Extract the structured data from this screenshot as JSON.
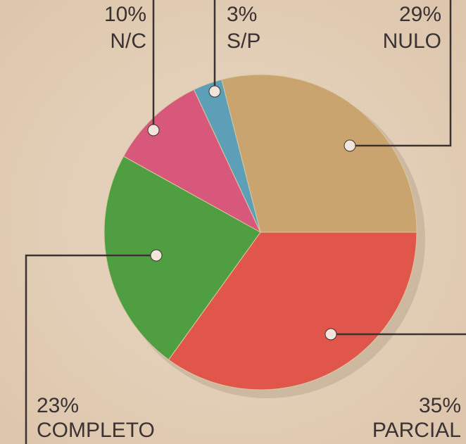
{
  "chart_data": {
    "type": "pie",
    "categories": [
      "NULO",
      "PARCIAL",
      "COMPLETO",
      "N/C",
      "S/P"
    ],
    "values": [
      29,
      35,
      23,
      10,
      3
    ],
    "value_labels": [
      "29%",
      "35%",
      "23%",
      "10%",
      "3%"
    ],
    "colors": [
      "#c9a46e",
      "#e0564a",
      "#4f9f42",
      "#d8587c",
      "#5c9fb6"
    ]
  }
}
